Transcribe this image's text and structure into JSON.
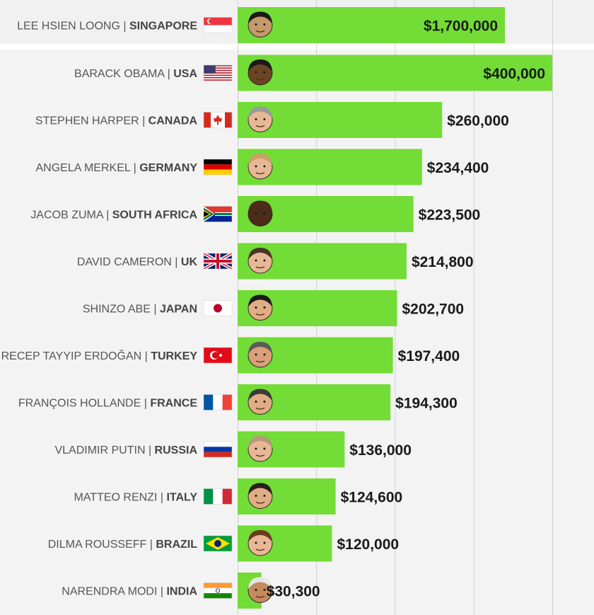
{
  "chart_data": {
    "type": "bar",
    "orientation": "horizontal",
    "title": "",
    "xlabel": "",
    "ylabel": "",
    "xlim": [
      0,
      400000
    ],
    "grid": true,
    "bar_color": "#73dc36",
    "highlight_row_color": "#f1f1f1",
    "rows": [
      {
        "person": "LEE HSIEN LOONG",
        "country": "SINGAPORE",
        "value": 1700000,
        "value_label": "$1,700,000",
        "flag": "flag-singapore",
        "photo": "face-icon",
        "skin": "#c49a6c",
        "hair": "#1a1a1a",
        "broken_scale": true
      },
      {
        "person": "BARACK OBAMA",
        "country": "USA",
        "value": 400000,
        "value_label": "$400,000",
        "flag": "flag-usa",
        "photo": "face-icon",
        "skin": "#6b4423",
        "hair": "#1a1a1a"
      },
      {
        "person": "STEPHEN HARPER",
        "country": "CANADA",
        "value": 260000,
        "value_label": "$260,000",
        "flag": "flag-canada",
        "photo": "face-icon",
        "skin": "#e8b896",
        "hair": "#9a9a9a"
      },
      {
        "person": "ANGELA MERKEL",
        "country": "GERMANY",
        "value": 234400,
        "value_label": "$234,400",
        "flag": "flag-germany",
        "photo": "face-icon",
        "skin": "#e8b896",
        "hair": "#c9a06a"
      },
      {
        "person": "JACOB ZUMA",
        "country": "SOUTH AFRICA",
        "value": 223500,
        "value_label": "$223,500",
        "flag": "flag-south-africa",
        "photo": "face-icon",
        "skin": "#4a2c18",
        "hair": "#4a2c18"
      },
      {
        "person": "DAVID CAMERON",
        "country": "UK",
        "value": 214800,
        "value_label": "$214,800",
        "flag": "flag-uk",
        "photo": "face-icon",
        "skin": "#e8b896",
        "hair": "#4a3426"
      },
      {
        "person": "SHINZO ABE",
        "country": "JAPAN",
        "value": 202700,
        "value_label": "$202,700",
        "flag": "flag-japan",
        "photo": "face-icon",
        "skin": "#e0ad84",
        "hair": "#1a1a1a"
      },
      {
        "person": "RECEP TAYYIP ERDOĞAN",
        "country": "TURKEY",
        "value": 197400,
        "value_label": "$197,400",
        "flag": "flag-turkey",
        "photo": "face-icon",
        "skin": "#d9a07a",
        "hair": "#5a5a5a"
      },
      {
        "person": "FRANÇOIS HOLLANDE",
        "country": "FRANCE",
        "value": 194300,
        "value_label": "$194,300",
        "flag": "flag-france",
        "photo": "face-icon",
        "skin": "#e0ad84",
        "hair": "#3a3a3a"
      },
      {
        "person": "VLADIMIR PUTIN",
        "country": "RUSSIA",
        "value": 136000,
        "value_label": "$136,000",
        "flag": "flag-russia",
        "photo": "face-icon",
        "skin": "#e8b896",
        "hair": "#b59a7a"
      },
      {
        "person": "MATTEO RENZI",
        "country": "ITALY",
        "value": 124600,
        "value_label": "$124,600",
        "flag": "flag-italy",
        "photo": "face-icon",
        "skin": "#e0ad84",
        "hair": "#2a1f18"
      },
      {
        "person": "DILMA ROUSSEFF",
        "country": "BRAZIL",
        "value": 120000,
        "value_label": "$120,000",
        "flag": "flag-brazil",
        "photo": "face-icon",
        "skin": "#e8b896",
        "hair": "#6b3a22"
      },
      {
        "person": "NARENDRA MODI",
        "country": "INDIA",
        "value": 30300,
        "value_label": "$30,300",
        "flag": "flag-india",
        "photo": "face-icon",
        "skin": "#c48b5e",
        "hair": "#e6e6e6"
      }
    ]
  }
}
